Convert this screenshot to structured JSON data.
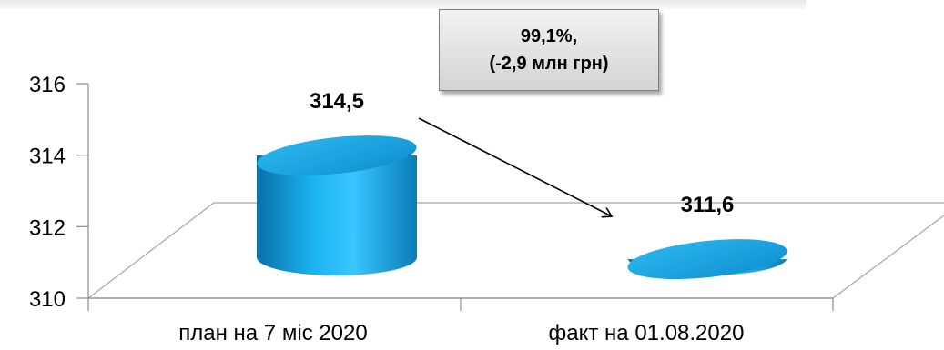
{
  "chart_data": {
    "type": "bar",
    "style": "3d-cylinder",
    "categories": [
      "план на 7 міс 2020",
      "факт на 01.08.2020"
    ],
    "values": [
      314.5,
      311.6
    ],
    "data_labels": [
      "314,5",
      "311,6"
    ],
    "ylim": [
      310,
      316
    ],
    "yticks": [
      310,
      312,
      314,
      316
    ],
    "ytick_labels": [
      "310",
      "312",
      "314",
      "316"
    ],
    "bar_color": "#1aa6e6",
    "grid": false,
    "annotation": {
      "line1": "99,1%,",
      "line2": "(-2,9 млн грн)"
    }
  }
}
